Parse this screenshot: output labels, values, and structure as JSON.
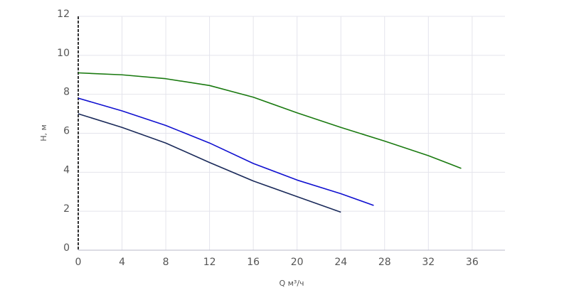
{
  "chart_data": {
    "type": "line",
    "x_label": "Q м³/ч",
    "y_label": "H, м",
    "xlim": [
      0,
      39
    ],
    "ylim": [
      0,
      12
    ],
    "xticks": [
      0,
      4,
      8,
      12,
      16,
      20,
      24,
      28,
      32,
      36
    ],
    "yticks": [
      0,
      2,
      4,
      6,
      8,
      10,
      12
    ],
    "grid": true,
    "series": [
      {
        "color": "#1a7a10",
        "x": [
          0,
          4,
          8,
          12,
          16,
          20,
          24,
          28,
          32,
          35
        ],
        "values": [
          9.1,
          9.0,
          8.8,
          8.45,
          7.85,
          7.05,
          6.3,
          5.6,
          4.85,
          4.2
        ]
      },
      {
        "color": "#1010d0",
        "x": [
          0,
          4,
          8,
          12,
          16,
          20,
          24,
          27
        ],
        "values": [
          7.8,
          7.15,
          6.4,
          5.5,
          4.45,
          3.6,
          2.9,
          2.3
        ]
      },
      {
        "color": "#1a2a5a",
        "x": [
          0,
          4,
          8,
          12,
          16,
          20,
          24
        ],
        "values": [
          7.0,
          6.3,
          5.5,
          4.5,
          3.55,
          2.75,
          1.95
        ]
      }
    ]
  }
}
